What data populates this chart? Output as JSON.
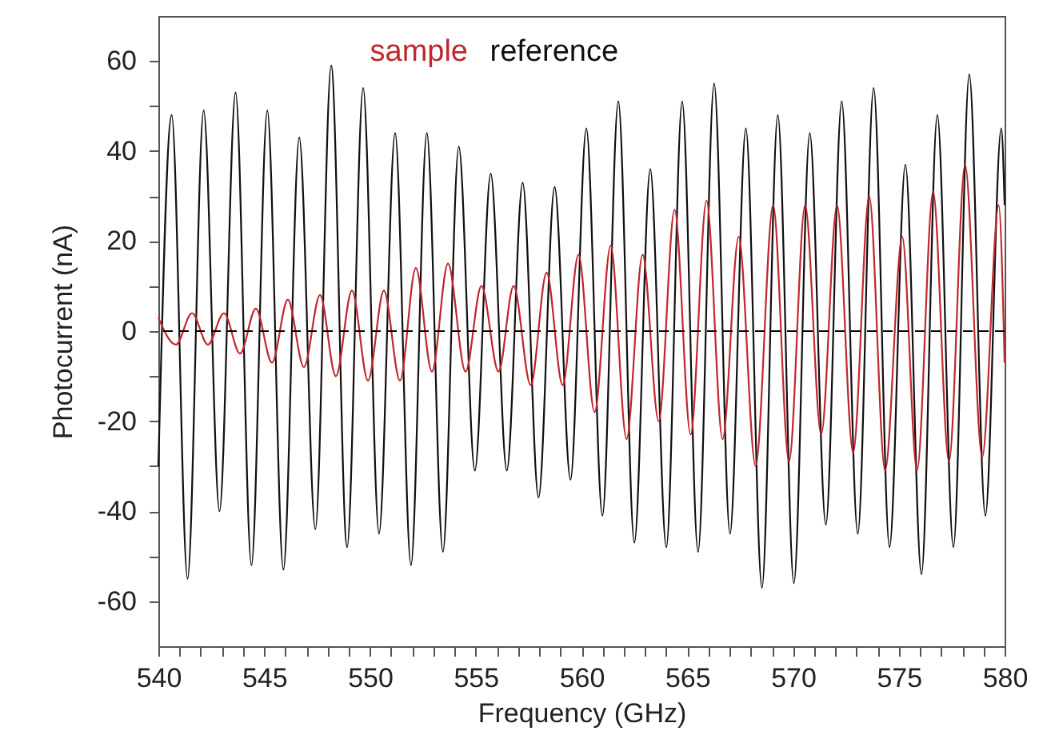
{
  "chart_data": {
    "type": "line",
    "xlabel": "Frequency (GHz)",
    "ylabel": "Photocurrent (nA)",
    "xlim": [
      540,
      580
    ],
    "ylim": [
      -70,
      70
    ],
    "xticks": [
      540,
      {
        "value": 541,
        "label": null
      },
      {
        "value": 542,
        "label": null
      },
      {
        "value": 543,
        "label": null
      },
      {
        "value": 544,
        "label": null
      },
      545,
      {
        "value": 546,
        "label": null
      },
      {
        "value": 547,
        "label": null
      },
      {
        "value": 548,
        "label": null
      },
      {
        "value": 549,
        "label": null
      },
      550,
      {
        "value": 551,
        "label": null
      },
      {
        "value": 552,
        "label": null
      },
      {
        "value": 553,
        "label": null
      },
      {
        "value": 554,
        "label": null
      },
      555,
      {
        "value": 556,
        "label": null
      },
      {
        "value": 557,
        "label": null
      },
      {
        "value": 558,
        "label": null
      },
      {
        "value": 559,
        "label": null
      },
      560,
      {
        "value": 561,
        "label": null
      },
      {
        "value": 562,
        "label": null
      },
      {
        "value": 563,
        "label": null
      },
      {
        "value": 564,
        "label": null
      },
      565,
      {
        "value": 566,
        "label": null
      },
      {
        "value": 567,
        "label": null
      },
      {
        "value": 568,
        "label": null
      },
      {
        "value": 569,
        "label": null
      },
      570,
      {
        "value": 571,
        "label": null
      },
      {
        "value": 572,
        "label": null
      },
      {
        "value": 573,
        "label": null
      },
      {
        "value": 574,
        "label": null
      },
      575,
      {
        "value": 576,
        "label": null
      },
      {
        "value": 577,
        "label": null
      },
      {
        "value": 578,
        "label": null
      },
      {
        "value": 579,
        "label": null
      },
      580
    ],
    "yticks": [
      -60,
      {
        "value": -50,
        "label": null
      },
      -40,
      {
        "value": -30,
        "label": null
      },
      -20,
      {
        "value": -10,
        "label": null
      },
      0,
      {
        "value": 10,
        "label": null
      },
      20,
      {
        "value": 30,
        "label": null
      },
      40,
      {
        "value": 50,
        "label": null
      },
      60
    ],
    "grid": false,
    "legend": "top",
    "marker": "none",
    "line_style": "solid",
    "ref_lines": [
      {
        "axis": "y",
        "value": 0,
        "label": null,
        "color": "#000000",
        "line_style": "dashed"
      }
    ],
    "series": [
      {
        "name": "reference",
        "color": "#111111",
        "x": [
          540,
          540.63,
          541.38,
          542.14,
          542.89,
          543.65,
          544.4,
          545.15,
          545.91,
          546.66,
          547.42,
          548.17,
          548.92,
          549.68,
          550.43,
          551.19,
          551.94,
          552.69,
          553.45,
          554.2,
          554.96,
          555.71,
          556.47,
          557.22,
          557.97,
          558.73,
          559.48,
          560.23,
          560.99,
          561.74,
          562.5,
          563.25,
          564.01,
          564.76,
          565.51,
          566.27,
          567.02,
          567.77,
          568.53,
          569.28,
          570.04,
          570.79,
          571.55,
          572.3,
          573.06,
          573.81,
          574.56,
          575.31,
          576.07,
          576.82,
          577.58,
          578.33,
          579.09,
          579.84,
          580
        ],
        "values": [
          -30,
          48,
          -55,
          49,
          -40,
          53,
          -52,
          49,
          -53,
          43,
          -44,
          59,
          -48,
          54,
          -45,
          44,
          -52,
          44,
          -49,
          41,
          -31,
          35,
          -31,
          33,
          -37,
          32,
          -33,
          45,
          -41,
          51,
          -47,
          36,
          -48,
          51,
          -49,
          55,
          -45,
          45,
          -57,
          48,
          -56,
          44,
          -43,
          51,
          -45,
          54,
          -48,
          37,
          -54,
          48,
          -48,
          57,
          -41,
          45,
          28
        ]
      },
      {
        "name": "sample",
        "color": "#c0282d",
        "x": [
          540,
          540.83,
          541.59,
          542.34,
          543.1,
          543.86,
          544.61,
          545.37,
          546.12,
          546.88,
          547.64,
          548.39,
          549.15,
          549.91,
          550.66,
          551.42,
          552.17,
          552.93,
          553.69,
          554.52,
          555.27,
          556.08,
          556.79,
          557.6,
          558.35,
          559.11,
          559.86,
          560.62,
          561.38,
          562.13,
          562.89,
          563.65,
          564.4,
          565.16,
          565.91,
          566.67,
          567.43,
          568.23,
          569.06,
          569.81,
          570.57,
          571.33,
          572.08,
          572.84,
          573.6,
          574.35,
          575.16,
          575.86,
          576.62,
          577.37,
          578.13,
          578.94,
          579.72,
          580
        ],
        "values": [
          3,
          -3,
          4,
          -3,
          4,
          -5,
          5,
          -7,
          7,
          -8,
          8,
          -10,
          9,
          -11,
          9,
          -11,
          14,
          -9,
          15,
          -9,
          10,
          -9,
          10,
          -12,
          13,
          -12,
          17,
          -18,
          19,
          -24,
          17,
          -20,
          27,
          -23,
          29,
          -24,
          21,
          -30,
          28,
          -29,
          28,
          -23,
          28,
          -27,
          30,
          -31,
          21,
          -31,
          31,
          -29,
          37,
          -28,
          28,
          -7
        ]
      }
    ]
  }
}
